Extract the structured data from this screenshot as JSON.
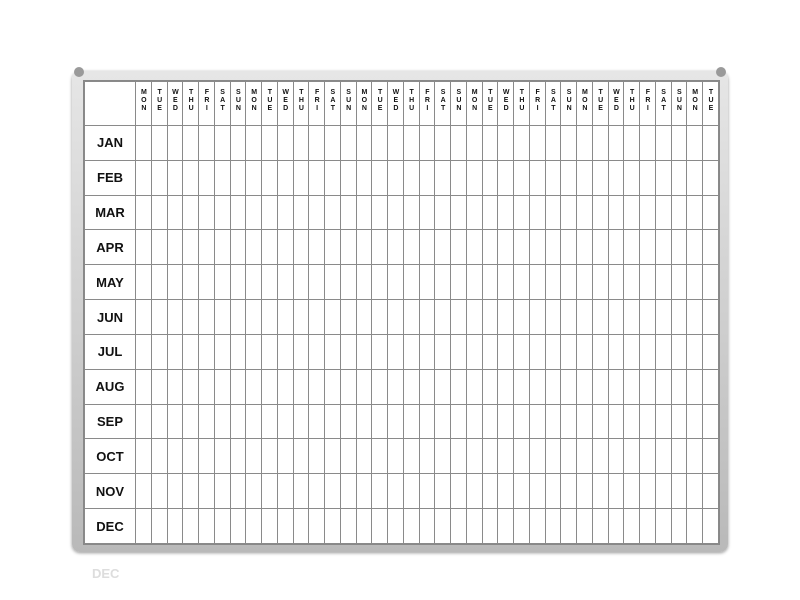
{
  "board": {
    "months": [
      "JAN",
      "FEB",
      "MAR",
      "APR",
      "MAY",
      "JUN",
      "JUL",
      "AUG",
      "SEP",
      "OCT",
      "NOV",
      "DEC"
    ],
    "day_cycle": [
      "MON",
      "TUE",
      "WED",
      "THU",
      "FRI",
      "SAT",
      "SUN"
    ],
    "day_columns": 37,
    "reflection": "DEC",
    "frame_color": "#c4c4c4",
    "grid_color": "#8a8a8a"
  }
}
